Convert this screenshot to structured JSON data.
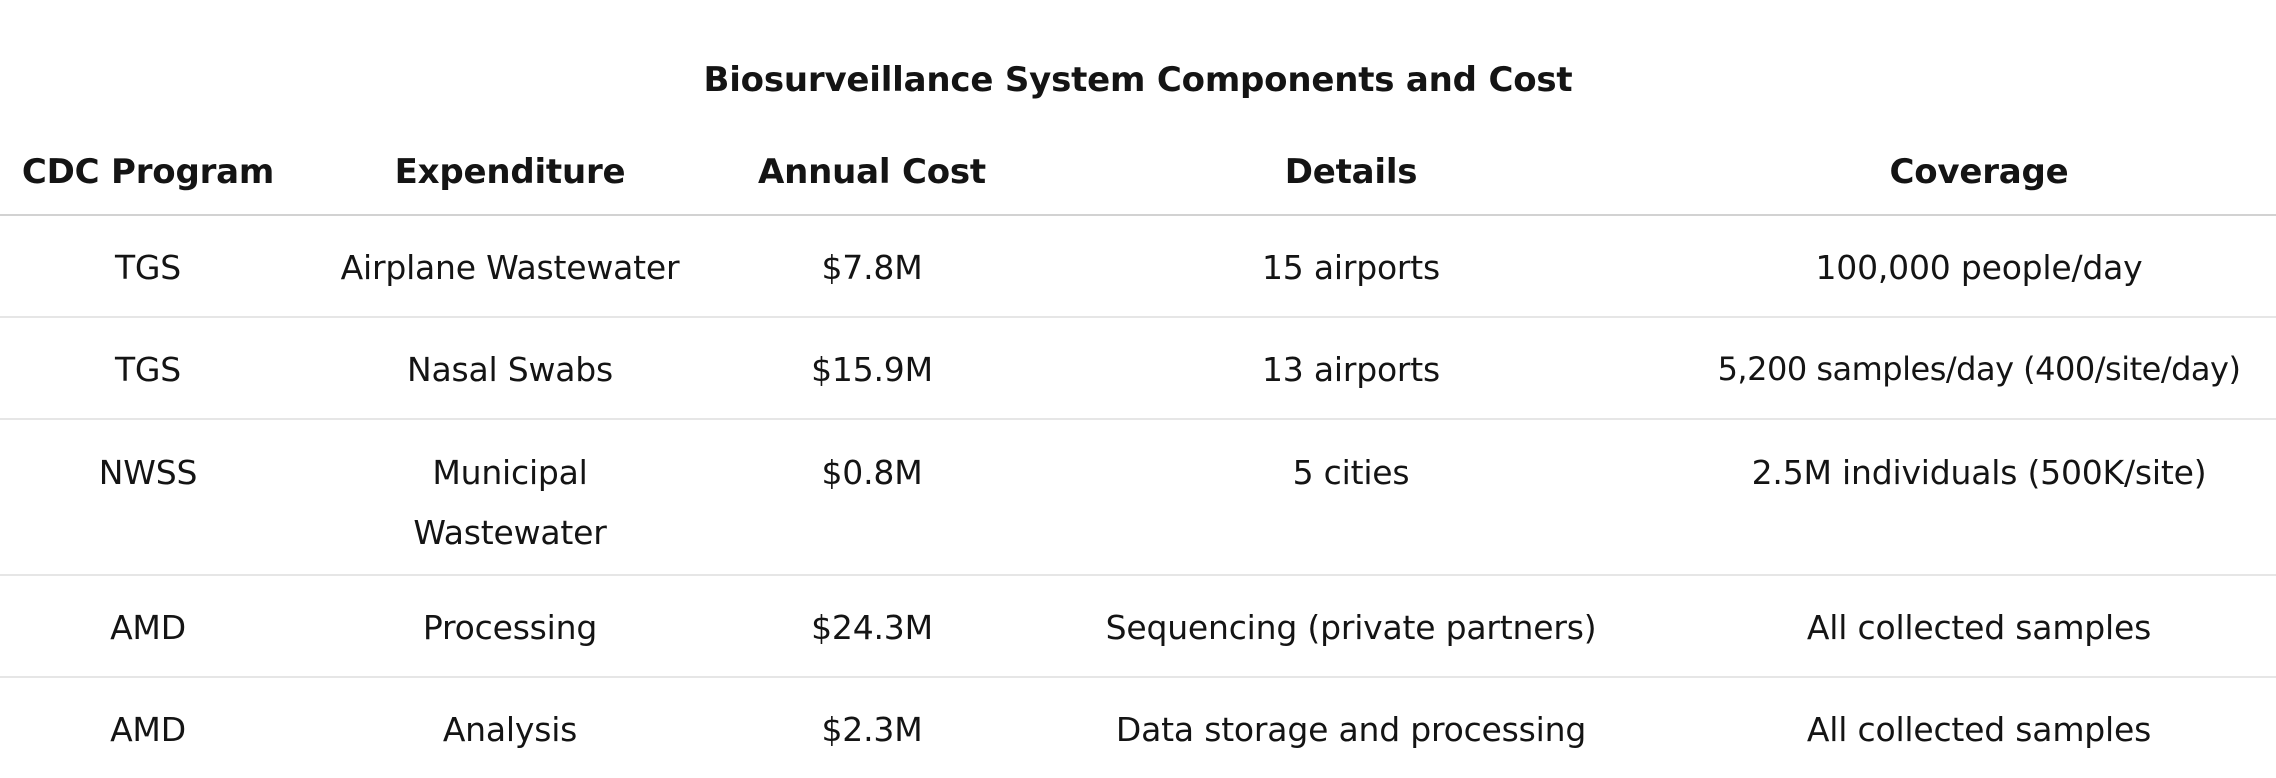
{
  "table": {
    "title": "Biosurveillance System Components and Cost",
    "headers": [
      "CDC Program",
      "Expenditure",
      "Annual Cost",
      "Details",
      "Coverage"
    ],
    "rows": [
      [
        "TGS",
        "Airplane Wastewater",
        "$7.8M",
        "15 airports",
        "100,000 people/day"
      ],
      [
        "TGS",
        "Nasal Swabs",
        "$15.9M",
        "13 airports",
        "5,200 samples/day (400/site/day)"
      ],
      [
        "NWSS",
        "Municipal Wastewater",
        "$0.8M",
        "5 cities",
        "2.5M individuals (500K/site)"
      ],
      [
        "AMD",
        "Processing",
        "$24.3M",
        "Sequencing (private partners)",
        "All collected samples"
      ],
      [
        "AMD",
        "Analysis",
        "$2.3M",
        "Data storage and processing",
        "All collected samples"
      ]
    ]
  }
}
